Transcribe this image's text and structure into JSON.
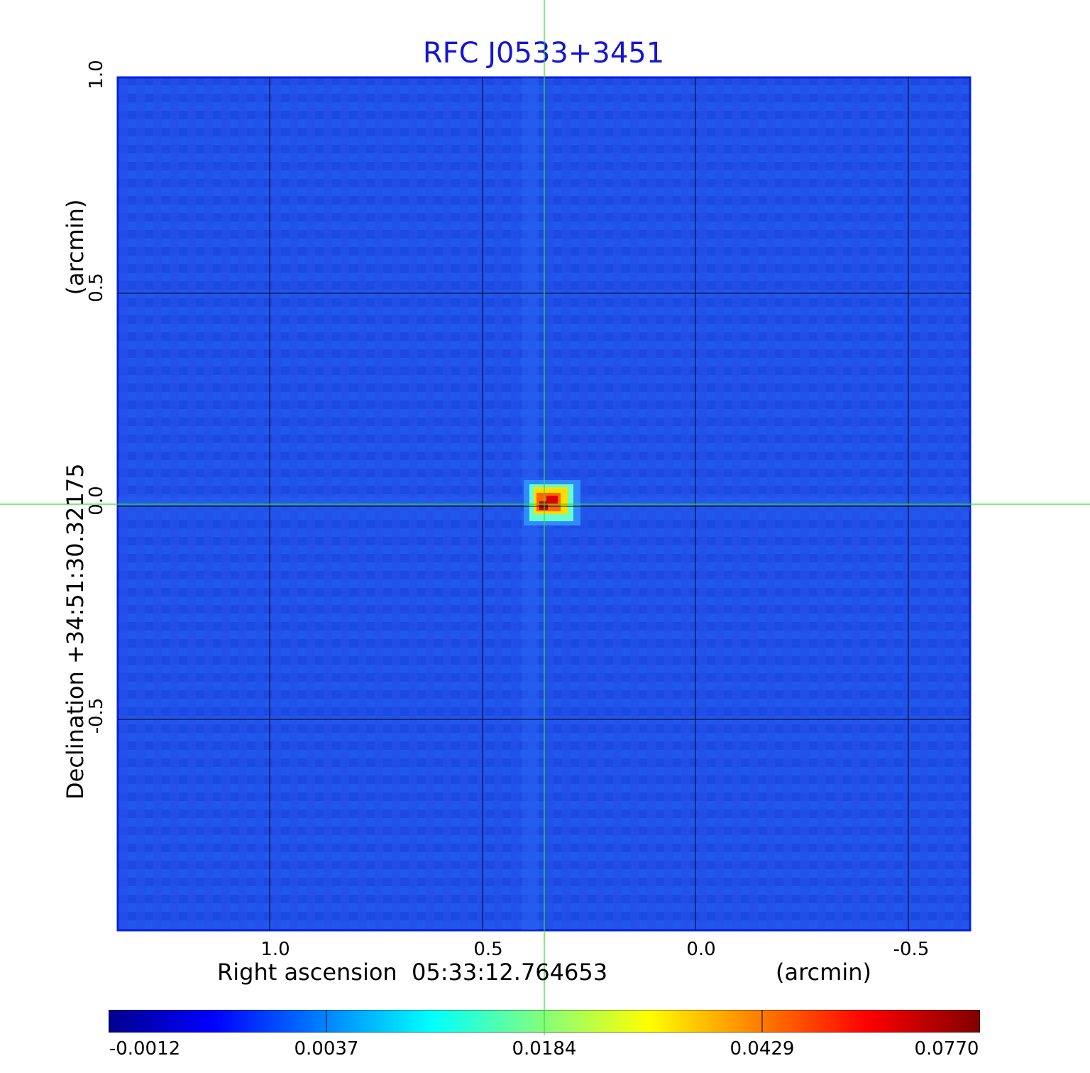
{
  "title": "RFC J0533+3451",
  "y_axis": {
    "label": "Declination  +34:51:30.32175",
    "unit_label": "(arcmin)",
    "ticks": [
      "1.0",
      "0.5",
      "0.0",
      "-0.5"
    ]
  },
  "x_axis": {
    "label": "Right ascension  05:33:12.764653",
    "unit_label": "(arcmin)",
    "ticks": [
      "1.0",
      "0.5",
      "0.0",
      "-0.5"
    ]
  },
  "colorbar": {
    "ticks": [
      "-0.0012",
      "0.0037",
      "0.0184",
      "0.0429",
      "0.0770"
    ],
    "colormap": [
      "#00008f",
      "#0000ff",
      "#00ffff",
      "#ffff00",
      "#ff0000",
      "#800000"
    ]
  },
  "colors": {
    "title": "#1515d6",
    "background_map": "#1f4fe8",
    "crosshair": "#33dd33",
    "grid": "#000000"
  }
}
